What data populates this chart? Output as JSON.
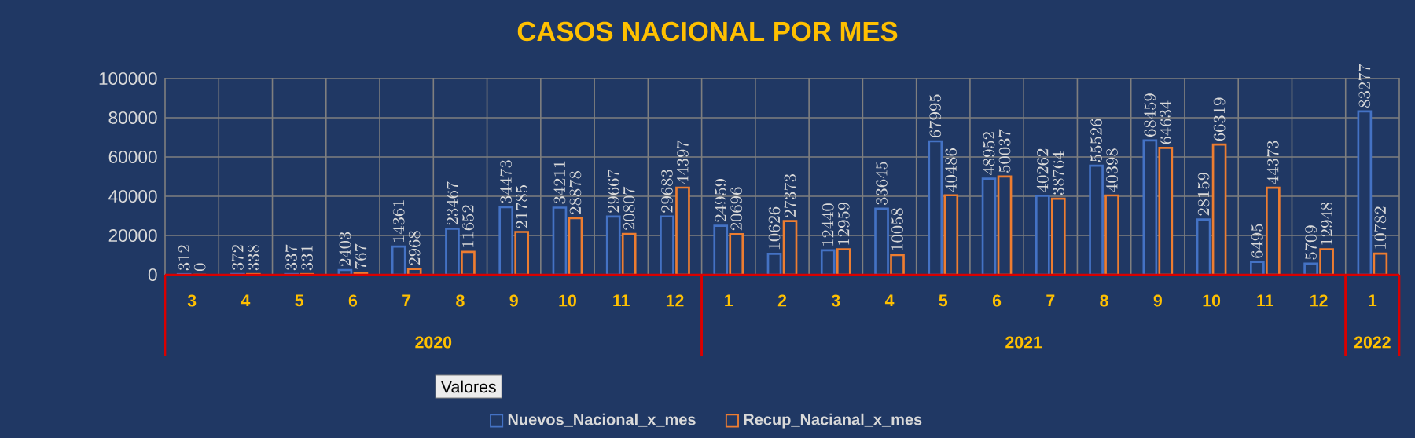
{
  "chart_data": {
    "type": "bar",
    "title": "CASOS NACIONAL POR MES",
    "categories": [
      "3",
      "4",
      "5",
      "6",
      "7",
      "8",
      "9",
      "10",
      "11",
      "12",
      "1",
      "2",
      "3",
      "4",
      "5",
      "6",
      "7",
      "8",
      "9",
      "10",
      "11",
      "12",
      "1"
    ],
    "series": [
      {
        "name": "Nuevos_Nacional_x_mes",
        "color": "#4472c4",
        "values": [
          312,
          372,
          337,
          2403,
          14361,
          23467,
          34473,
          34211,
          29667,
          29683,
          24959,
          10626,
          12440,
          33645,
          67995,
          48952,
          40262,
          55526,
          68459,
          28159,
          6495,
          5709,
          83277
        ]
      },
      {
        "name": "Recup_Nacianal_x_mes",
        "color": "#ed7d31",
        "values": [
          0,
          338,
          331,
          767,
          2968,
          11652,
          21785,
          28878,
          20807,
          44397,
          20696,
          27373,
          12959,
          10058,
          40486,
          50037,
          38764,
          40398,
          64634,
          66319,
          44373,
          12948,
          10782
        ]
      }
    ],
    "ylim": [
      0,
      100000
    ],
    "yticks": [
      0,
      20000,
      40000,
      60000,
      80000,
      100000
    ],
    "grid": true,
    "legend": "bottom",
    "data_labels": true,
    "annotations": [
      "2020",
      "2021",
      "2022",
      "Valores"
    ]
  }
}
